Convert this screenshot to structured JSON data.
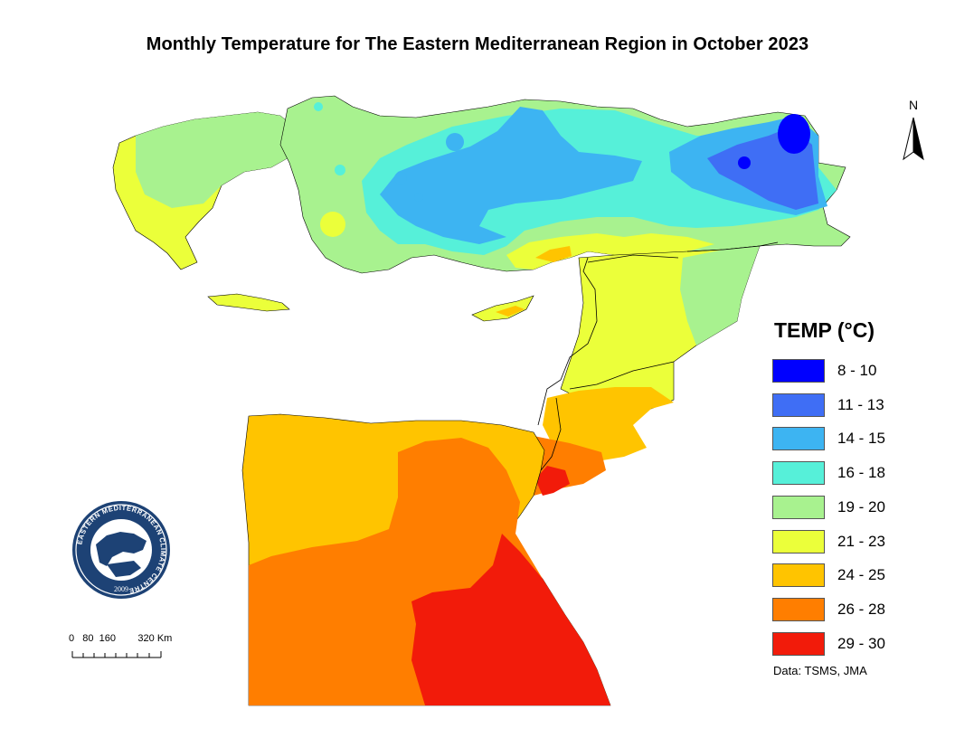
{
  "title": "Monthly Temperature for The Eastern Mediterranean Region in October 2023",
  "legend": {
    "title": "TEMP (°C)",
    "items": [
      {
        "label": "8 - 10",
        "color": "#0000ff"
      },
      {
        "label": "11 - 13",
        "color": "#3f6ef5"
      },
      {
        "label": "14 - 15",
        "color": "#3db4f2"
      },
      {
        "label": "16 - 18",
        "color": "#56f0d9"
      },
      {
        "label": "19 - 20",
        "color": "#a8f28f"
      },
      {
        "label": "21 - 23",
        "color": "#ebff3a"
      },
      {
        "label": "24 - 25",
        "color": "#ffc400"
      },
      {
        "label": "26 - 28",
        "color": "#ff7e00"
      },
      {
        "label": "29 - 30",
        "color": "#f21b0a"
      }
    ]
  },
  "source": "Data: TSMS, JMA",
  "north_arrow": {
    "label": "N"
  },
  "scale_bar": {
    "labels": "0   80  160        320 Km"
  },
  "logo": {
    "ring_text": "EASTERN MEDITERRANEAN CLIMATE CENTRE",
    "year": "2009"
  }
}
